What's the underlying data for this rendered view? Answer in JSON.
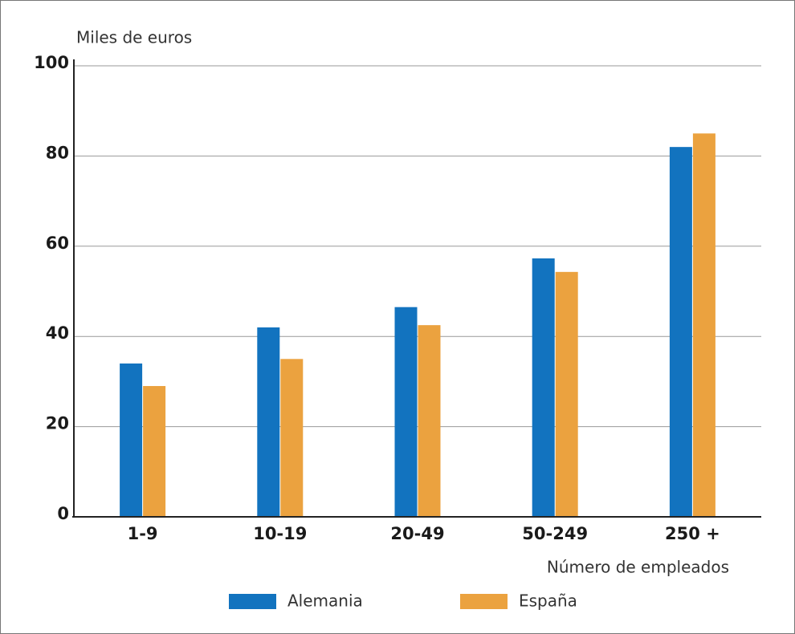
{
  "chart_data": {
    "type": "bar",
    "y_label": "Miles de euros",
    "x_label": "Número de empleados",
    "categories": [
      "1-9",
      "10-19",
      "20-49",
      "50-249",
      "250 +"
    ],
    "series": [
      {
        "name": "Alemania",
        "color": "#1273bf",
        "values": [
          34,
          42,
          46.5,
          57.3,
          82
        ]
      },
      {
        "name": "España",
        "color": "#eba23f",
        "values": [
          29,
          35,
          42.5,
          54.3,
          85
        ]
      }
    ],
    "ylim": [
      0,
      100
    ],
    "yticks": [
      0,
      20,
      40,
      60,
      80,
      100
    ],
    "grid": true
  }
}
